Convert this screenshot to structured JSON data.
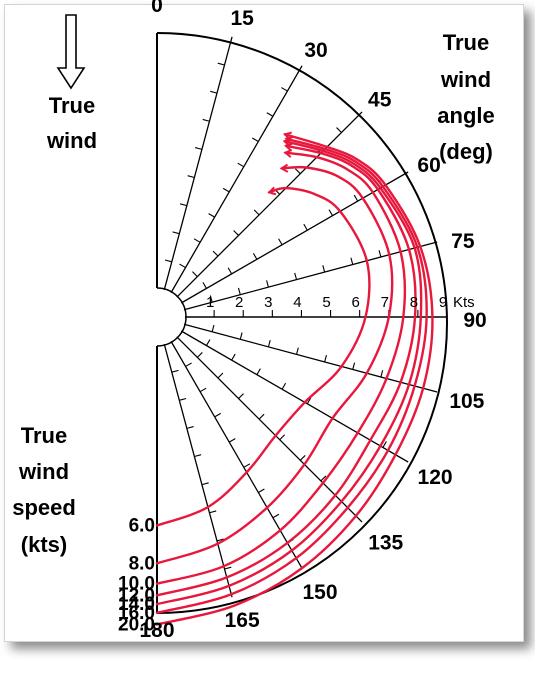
{
  "chart_data": {
    "type": "polar-line",
    "true_wind_label": [
      "True",
      "wind"
    ],
    "angle_axis_label": [
      "True",
      "wind",
      "angle",
      "(deg)"
    ],
    "speed_axis_label": [
      "True",
      "wind",
      "speed",
      "(kts)"
    ],
    "radial_unit": "Kts",
    "angle_ticks": [
      "0",
      "15",
      "30",
      "45",
      "60",
      "75",
      "90",
      "105",
      "120",
      "135",
      "150",
      "165",
      "180"
    ],
    "radial_ticks": [
      "1",
      "2",
      "3",
      "4",
      "5",
      "6",
      "7",
      "8",
      "9"
    ],
    "rmax": 9,
    "series": [
      {
        "name": "6.0",
        "angles": [
          42,
          45,
          52,
          60,
          75,
          90,
          105,
          120,
          135,
          150,
          165,
          180
        ],
        "speeds": [
          4.8,
          5.3,
          5.9,
          6.3,
          6.5,
          6.2,
          5.6,
          4.9,
          4.8,
          5.2,
          5.8,
          6.2
        ]
      },
      {
        "name": "8.0",
        "angles": [
          40,
          45,
          52,
          60,
          75,
          90,
          105,
          120,
          135,
          150,
          165,
          180
        ],
        "speeds": [
          5.7,
          6.3,
          6.9,
          7.2,
          7.3,
          7.0,
          6.5,
          6.0,
          6.2,
          6.6,
          7.1,
          7.5
        ]
      },
      {
        "name": "10.0",
        "angles": [
          38,
          45,
          52,
          60,
          75,
          90,
          105,
          120,
          135,
          150,
          165,
          180
        ],
        "speeds": [
          6.2,
          6.8,
          7.3,
          7.6,
          7.7,
          7.5,
          7.2,
          7.0,
          7.1,
          7.5,
          7.9,
          8.2
        ]
      },
      {
        "name": "12.0",
        "angles": [
          37,
          45,
          52,
          60,
          75,
          90,
          105,
          120,
          135,
          150,
          165,
          180
        ],
        "speeds": [
          6.4,
          7.0,
          7.5,
          7.8,
          8.0,
          7.9,
          7.7,
          7.5,
          7.7,
          8.0,
          8.3,
          8.6
        ]
      },
      {
        "name": "14.0",
        "angles": [
          36,
          45,
          52,
          60,
          75,
          90,
          105,
          120,
          135,
          150,
          165,
          180
        ],
        "speeds": [
          6.5,
          7.1,
          7.6,
          7.9,
          8.2,
          8.1,
          8.0,
          7.9,
          8.0,
          8.3,
          8.6,
          8.9
        ]
      },
      {
        "name": "16.0",
        "angles": [
          36,
          45,
          52,
          60,
          75,
          90,
          105,
          120,
          135,
          150,
          165,
          180
        ],
        "speeds": [
          6.6,
          7.2,
          7.7,
          8.0,
          8.3,
          8.3,
          8.2,
          8.2,
          8.3,
          8.6,
          8.9,
          9.2
        ]
      },
      {
        "name": "20.0",
        "angles": [
          35,
          45,
          52,
          60,
          75,
          90,
          105,
          120,
          135,
          150,
          165,
          180
        ],
        "speeds": [
          6.7,
          7.3,
          7.8,
          8.1,
          8.4,
          8.5,
          8.5,
          8.5,
          8.7,
          9.0,
          9.3,
          9.6
        ]
      }
    ],
    "colors": {
      "curve": "#e8173c",
      "grid": "#000000"
    }
  }
}
